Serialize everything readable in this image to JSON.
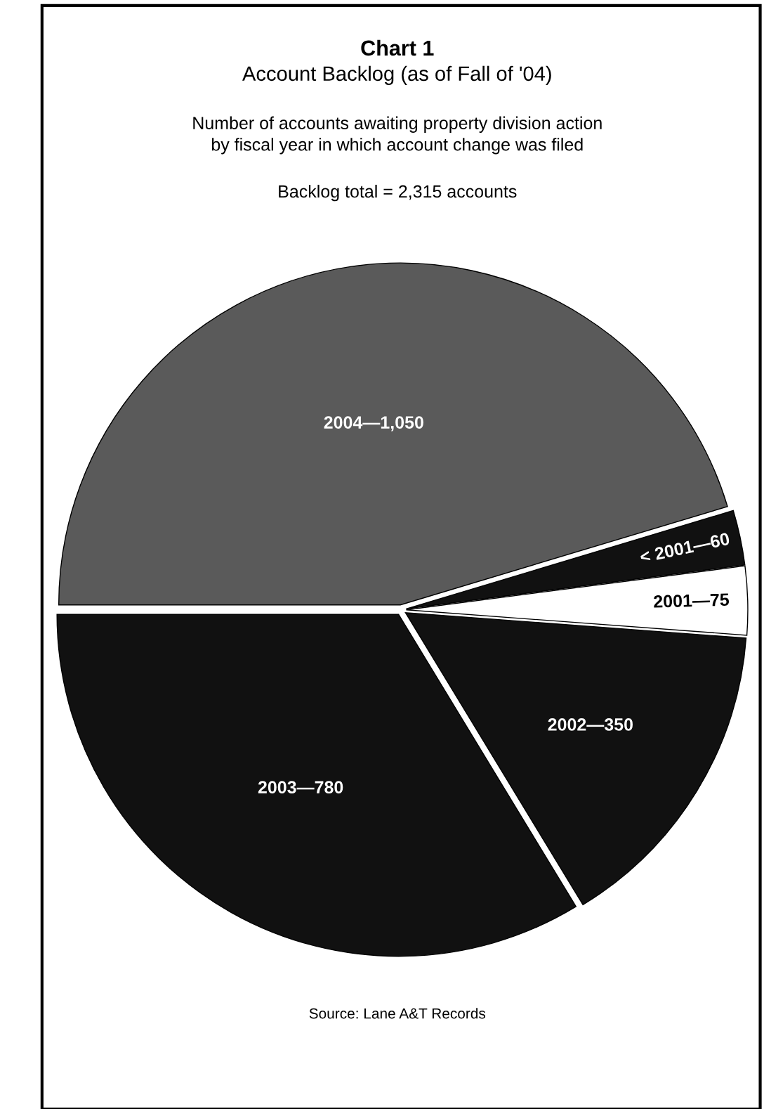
{
  "chart_data": {
    "type": "pie",
    "title": "Chart 1",
    "subtitle": "Account Backlog (as of Fall of '04)",
    "annotations": [
      "Number of accounts awaiting property division action\nby fiscal year in which account change was filed",
      "Backlog total = 2,315 accounts",
      "Source: Lane A&T Records"
    ],
    "categories": [
      "2004—1,050",
      "< 2001—60",
      "2001—75",
      "2002—350",
      "2003—780"
    ],
    "values": [
      1050,
      60,
      75,
      350,
      780
    ],
    "colors": [
      "#5a5a5a",
      "#111111",
      "#ffffff",
      "#111111",
      "#111111"
    ]
  }
}
